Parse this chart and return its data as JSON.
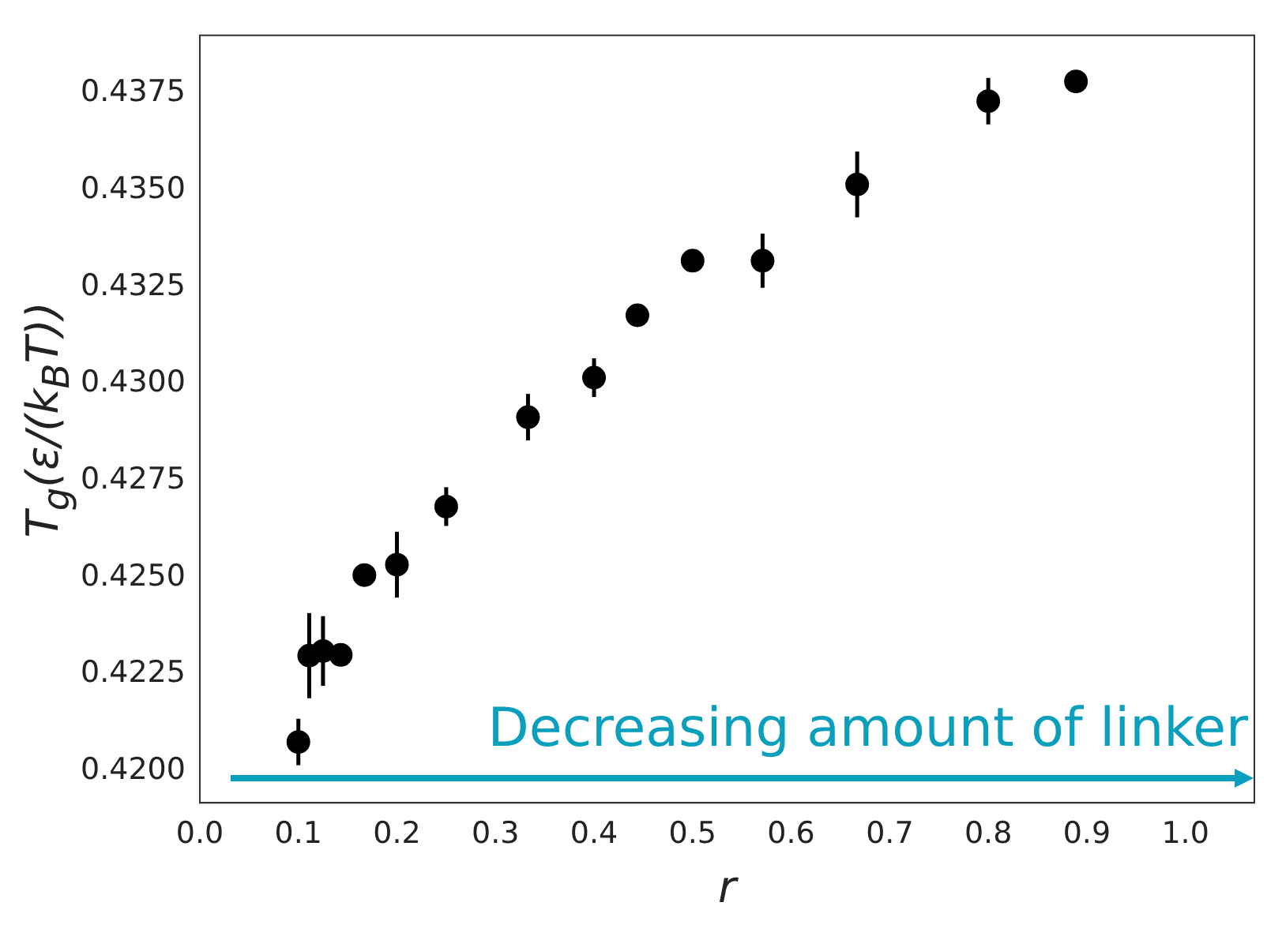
{
  "chart_data": {
    "type": "scatter",
    "xlabel": "r",
    "ylabel": "T$_{g}$(ε/(k$_{B}$T))",
    "annotations": [
      "Decreasing amount of linker"
    ],
    "x": [
      0.1,
      0.111,
      0.125,
      0.143,
      0.167,
      0.2,
      0.25,
      0.333,
      0.4,
      0.444,
      0.5,
      0.571,
      0.667,
      0.8,
      0.889
    ],
    "values": [
      0.42075,
      0.42298,
      0.4231,
      0.423,
      0.42506,
      0.42533,
      0.42683,
      0.42914,
      0.43016,
      0.43177,
      0.43318,
      0.43318,
      0.43515,
      0.4373,
      0.43781
    ],
    "errors": [
      0.0006,
      0.0011,
      0.0009,
      null,
      null,
      0.00085,
      0.0005,
      0.0006,
      0.0005,
      null,
      null,
      0.0007,
      0.00085,
      0.0006,
      null
    ],
    "color": "#000000",
    "marker": "circle",
    "grid": false,
    "legend": false,
    "xlim": [
      0,
      1.07
    ],
    "xticks": [
      {
        "value": 0,
        "label": "0.0"
      },
      0.1,
      0.2,
      0.3,
      0.4,
      0.5,
      0.6,
      0.7,
      0.8,
      0.9,
      {
        "value": 1,
        "label": "1.0"
      }
    ],
    "ylim": [
      0.41918,
      0.439
    ],
    "yticks": [
      {
        "value": 0.42,
        "label": "0.4200"
      },
      {
        "value": 0.4225,
        "label": "0.4225"
      },
      {
        "value": 0.425,
        "label": "0.4250"
      },
      {
        "value": 0.4275,
        "label": "0.4275"
      },
      {
        "value": 0.43,
        "label": "0.4300"
      },
      {
        "value": 0.4325,
        "label": "0.4325"
      },
      {
        "value": 0.435,
        "label": "0.4350"
      },
      {
        "value": 0.4375,
        "label": "0.4375"
      }
    ]
  }
}
